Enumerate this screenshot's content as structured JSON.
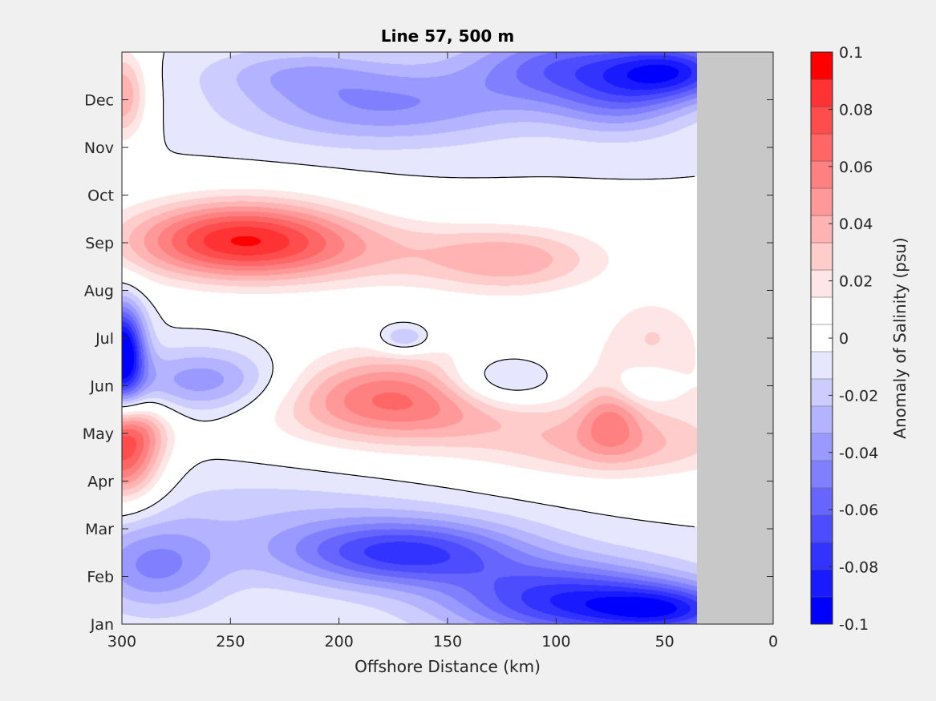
{
  "chart_data": {
    "type": "heatmap",
    "subtype": "filled-contour",
    "title": "Line 57, 500 m",
    "xlabel": "Offshore Distance (km)",
    "ylabel": "",
    "xlim": [
      300,
      0
    ],
    "x_reversed": true,
    "x_ticks": [
      300,
      250,
      200,
      150,
      100,
      50,
      0
    ],
    "y_ticks": [
      "Jan",
      "Feb",
      "Mar",
      "Apr",
      "May",
      "Jun",
      "Jul",
      "Aug",
      "Sep",
      "Oct",
      "Nov",
      "Dec"
    ],
    "y_range_months": [
      0,
      12
    ],
    "data_extent_km": [
      300,
      35
    ],
    "no_data_region_km": [
      35,
      0
    ],
    "no_data_color": "#c8c8c8",
    "colorbar": {
      "label": "Anomaly of Salinity (psu)",
      "range": [
        -0.1,
        0.1
      ],
      "levels": [
        -0.1,
        -0.09,
        -0.08,
        -0.07,
        -0.06,
        -0.05,
        -0.04,
        -0.03,
        -0.02,
        -0.01,
        0,
        0.01,
        0.02,
        0.03,
        0.04,
        0.05,
        0.06,
        0.07,
        0.08,
        0.09,
        0.1
      ],
      "tick_values": [
        0.1,
        0.08,
        0.06,
        0.04,
        0.02,
        0,
        -0.02,
        -0.04,
        -0.06,
        -0.08,
        -0.1
      ],
      "tick_labels": [
        "0.1",
        "0.08",
        "0.06",
        "0.04",
        "0.02",
        "0",
        "-0.02",
        "-0.04",
        "-0.06",
        "-0.08",
        "-0.1"
      ],
      "colors": [
        "#0000ff",
        "#1a1aff",
        "#3333ff",
        "#4d4dff",
        "#6666ff",
        "#8080ff",
        "#9999ff",
        "#b3b3ff",
        "#ccccff",
        "#e6e6ff",
        "#ffffff",
        "#ffffff",
        "#ffe6e6",
        "#ffcccc",
        "#ffb3b3",
        "#ff9999",
        "#ff8080",
        "#ff6666",
        "#ff4d4d",
        "#ff3333",
        "#ff0000"
      ]
    },
    "zero_contour": true,
    "blobs": [
      {
        "x_km": 300,
        "month": 3.4,
        "rx_km": 18,
        "ry": 0.9,
        "value": 0.07
      },
      {
        "x_km": 296,
        "month": 4.1,
        "rx_km": 18,
        "ry": 0.6,
        "value": 0.04
      },
      {
        "x_km": 300,
        "month": 11.1,
        "rx_km": 12,
        "ry": 1.0,
        "value": 0.05
      },
      {
        "x_km": 300,
        "month": 5.7,
        "rx_km": 10,
        "ry": 1.0,
        "value": -0.11
      },
      {
        "x_km": 246,
        "month": 8.1,
        "rx_km": 52,
        "ry": 0.85,
        "value": 0.085
      },
      {
        "x_km": 180,
        "month": 7.8,
        "rx_km": 110,
        "ry": 0.8,
        "value": 0.026
      },
      {
        "x_km": 120,
        "month": 7.6,
        "rx_km": 40,
        "ry": 0.7,
        "value": 0.03
      },
      {
        "x_km": 175,
        "month": 4.7,
        "rx_km": 55,
        "ry": 0.9,
        "value": 0.055
      },
      {
        "x_km": 105,
        "month": 4.8,
        "rx_km": 140,
        "ry": 1.5,
        "value": 0.025
      },
      {
        "x_km": 70,
        "month": 3.7,
        "rx_km": 55,
        "ry": 0.7,
        "value": 0.03
      },
      {
        "x_km": 75,
        "month": 4.3,
        "rx_km": 14,
        "ry": 0.7,
        "value": 0.03
      },
      {
        "x_km": 55,
        "month": 6.2,
        "rx_km": 22,
        "ry": 0.8,
        "value": 0.02
      },
      {
        "x_km": 124,
        "month": 5.1,
        "rx_km": 30,
        "ry": 0.6,
        "value": -0.05
      },
      {
        "x_km": 60,
        "month": 5.0,
        "rx_km": 14,
        "ry": 0.4,
        "value": -0.02
      },
      {
        "x_km": 170,
        "month": 6.0,
        "rx_km": 12,
        "ry": 0.3,
        "value": -0.035
      },
      {
        "x_km": 260,
        "month": 5.1,
        "rx_km": 38,
        "ry": 0.7,
        "value": -0.045
      },
      {
        "x_km": 230,
        "month": 2.3,
        "rx_km": 80,
        "ry": 1.1,
        "value": -0.015
      },
      {
        "x_km": 170,
        "month": 1.5,
        "rx_km": 55,
        "ry": 0.7,
        "value": -0.07
      },
      {
        "x_km": 95,
        "month": 0.5,
        "rx_km": 55,
        "ry": 0.8,
        "value": -0.075
      },
      {
        "x_km": 48,
        "month": 0.3,
        "rx_km": 35,
        "ry": 0.5,
        "value": -0.06
      },
      {
        "x_km": 285,
        "month": 1.2,
        "rx_km": 30,
        "ry": 0.9,
        "value": -0.04
      },
      {
        "x_km": 180,
        "month": 10.9,
        "rx_km": 65,
        "ry": 0.8,
        "value": -0.04
      },
      {
        "x_km": 95,
        "month": 11.7,
        "rx_km": 45,
        "ry": 0.8,
        "value": -0.055
      },
      {
        "x_km": 45,
        "month": 11.6,
        "rx_km": 30,
        "ry": 0.6,
        "value": -0.07
      },
      {
        "x_km": 70,
        "month": 10.9,
        "rx_km": 30,
        "ry": 0.7,
        "value": -0.03
      },
      {
        "x_km": 220,
        "month": 11.6,
        "rx_km": 40,
        "ry": 0.5,
        "value": -0.02
      }
    ]
  }
}
